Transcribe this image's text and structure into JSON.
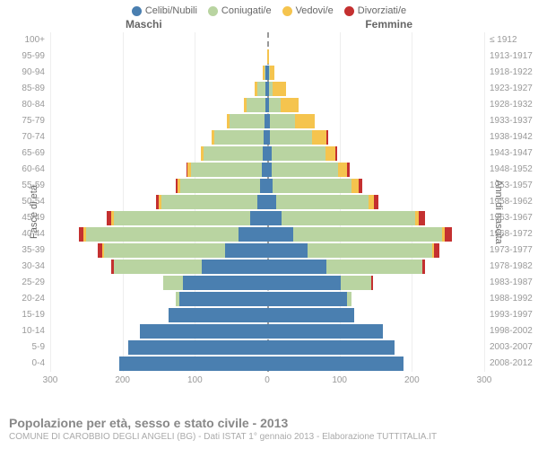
{
  "legend": [
    {
      "label": "Celibi/Nubili",
      "color": "#4a7fb0"
    },
    {
      "label": "Coniugati/e",
      "color": "#b9d4a1"
    },
    {
      "label": "Vedovi/e",
      "color": "#f5c44e"
    },
    {
      "label": "Divorziati/e",
      "color": "#c43030"
    }
  ],
  "gender_left": "Maschi",
  "gender_right": "Femmine",
  "axis_left_title": "Fasce di età",
  "axis_right_title": "Anni di nascita",
  "x_ticks": [
    300,
    200,
    100,
    0,
    100,
    200,
    300
  ],
  "x_max": 300,
  "footer_title": "Popolazione per età, sesso e stato civile - 2013",
  "footer_sub": "COMUNE DI CAROBBIO DEGLI ANGELI (BG) - Dati ISTAT 1° gennaio 2013 - Elaborazione TUTTITALIA.IT",
  "colors": {
    "background": "#ffffff",
    "grid": "#eeeeee",
    "centerline": "#999999",
    "tick_text": "#999999"
  },
  "rows": [
    {
      "age": "100+",
      "birth": "≤ 1912",
      "m": [
        0,
        0,
        0,
        0
      ],
      "f": [
        0,
        0,
        0,
        0
      ]
    },
    {
      "age": "95-99",
      "birth": "1913-1917",
      "m": [
        0,
        0,
        0,
        0
      ],
      "f": [
        0,
        0,
        3,
        0
      ]
    },
    {
      "age": "90-94",
      "birth": "1918-1922",
      "m": [
        2,
        2,
        2,
        0
      ],
      "f": [
        2,
        2,
        6,
        0
      ]
    },
    {
      "age": "85-89",
      "birth": "1923-1927",
      "m": [
        2,
        12,
        3,
        0
      ],
      "f": [
        2,
        6,
        18,
        0
      ]
    },
    {
      "age": "80-84",
      "birth": "1928-1932",
      "m": [
        2,
        26,
        4,
        0
      ],
      "f": [
        2,
        16,
        26,
        0
      ]
    },
    {
      "age": "75-79",
      "birth": "1933-1937",
      "m": [
        4,
        48,
        4,
        0
      ],
      "f": [
        4,
        34,
        28,
        0
      ]
    },
    {
      "age": "70-74",
      "birth": "1938-1942",
      "m": [
        5,
        68,
        4,
        0
      ],
      "f": [
        4,
        58,
        20,
        2
      ]
    },
    {
      "age": "65-69",
      "birth": "1943-1947",
      "m": [
        6,
        82,
        4,
        0
      ],
      "f": [
        6,
        74,
        14,
        3
      ]
    },
    {
      "age": "60-64",
      "birth": "1948-1952",
      "m": [
        8,
        98,
        4,
        2
      ],
      "f": [
        6,
        92,
        12,
        4
      ]
    },
    {
      "age": "55-59",
      "birth": "1953-1957",
      "m": [
        10,
        110,
        4,
        3
      ],
      "f": [
        8,
        108,
        10,
        5
      ]
    },
    {
      "age": "50-54",
      "birth": "1958-1962",
      "m": [
        14,
        132,
        4,
        4
      ],
      "f": [
        12,
        128,
        8,
        6
      ]
    },
    {
      "age": "45-49",
      "birth": "1963-1967",
      "m": [
        24,
        188,
        4,
        6
      ],
      "f": [
        20,
        184,
        6,
        8
      ]
    },
    {
      "age": "40-44",
      "birth": "1968-1972",
      "m": [
        40,
        210,
        4,
        6
      ],
      "f": [
        36,
        206,
        4,
        10
      ]
    },
    {
      "age": "35-39",
      "birth": "1973-1977",
      "m": [
        58,
        168,
        2,
        6
      ],
      "f": [
        56,
        172,
        2,
        8
      ]
    },
    {
      "age": "30-34",
      "birth": "1978-1982",
      "m": [
        90,
        122,
        0,
        4
      ],
      "f": [
        82,
        132,
        0,
        4
      ]
    },
    {
      "age": "25-29",
      "birth": "1983-1987",
      "m": [
        116,
        28,
        0,
        0
      ],
      "f": [
        102,
        42,
        0,
        2
      ]
    },
    {
      "age": "20-24",
      "birth": "1988-1992",
      "m": [
        122,
        4,
        0,
        0
      ],
      "f": [
        110,
        6,
        0,
        0
      ]
    },
    {
      "age": "15-19",
      "birth": "1993-1997",
      "m": [
        136,
        0,
        0,
        0
      ],
      "f": [
        120,
        0,
        0,
        0
      ]
    },
    {
      "age": "10-14",
      "birth": "1998-2002",
      "m": [
        176,
        0,
        0,
        0
      ],
      "f": [
        160,
        0,
        0,
        0
      ]
    },
    {
      "age": "5-9",
      "birth": "2003-2007",
      "m": [
        192,
        0,
        0,
        0
      ],
      "f": [
        176,
        0,
        0,
        0
      ]
    },
    {
      "age": "0-4",
      "birth": "2008-2012",
      "m": [
        204,
        0,
        0,
        0
      ],
      "f": [
        188,
        0,
        0,
        0
      ]
    }
  ]
}
